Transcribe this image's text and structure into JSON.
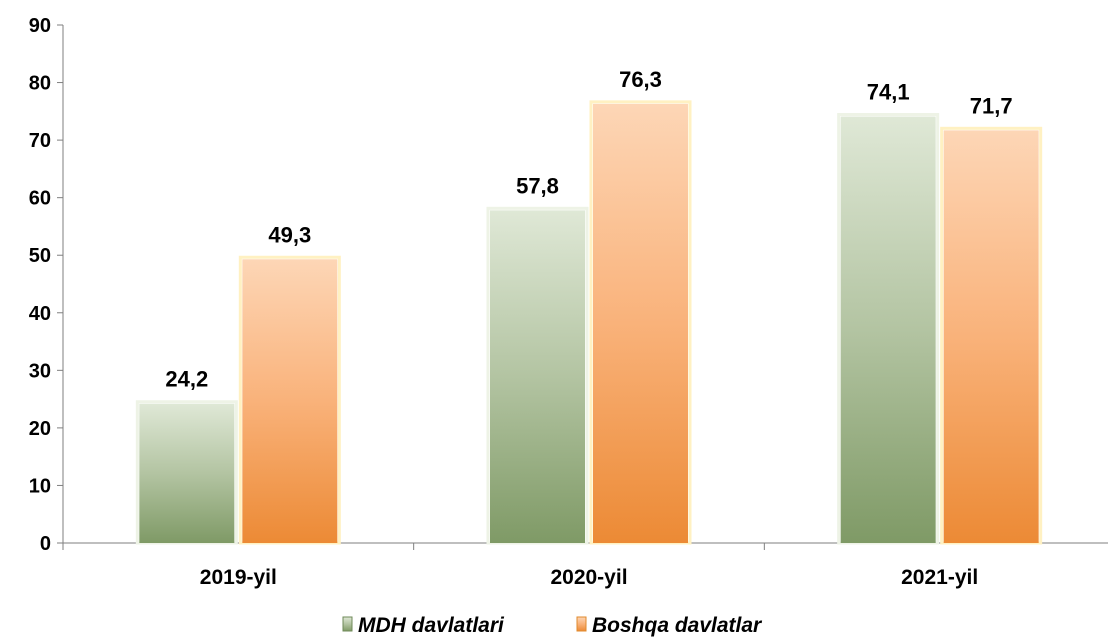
{
  "chart_data": {
    "type": "bar",
    "categories": [
      "2019-yil",
      "2020-yil",
      "2021-yil"
    ],
    "series": [
      {
        "name": "MDH davlatlari",
        "values": [
          24.2,
          57.8,
          74.1
        ],
        "labels": [
          "24,2",
          "57,8",
          "74,1"
        ],
        "color": "#8fa878"
      },
      {
        "name": "Boshqa davlatlar",
        "values": [
          49.3,
          76.3,
          71.7
        ],
        "labels": [
          "49,3",
          "76,3",
          "71,7"
        ],
        "color": "#f4a55c"
      }
    ],
    "ylim": [
      0,
      90
    ],
    "yticks": [
      "0",
      "10",
      "20",
      "30",
      "40",
      "50",
      "60",
      "70",
      "80",
      "90"
    ],
    "grid": false,
    "legend": "bottom-center",
    "title": "",
    "xlabel": "",
    "ylabel": ""
  }
}
